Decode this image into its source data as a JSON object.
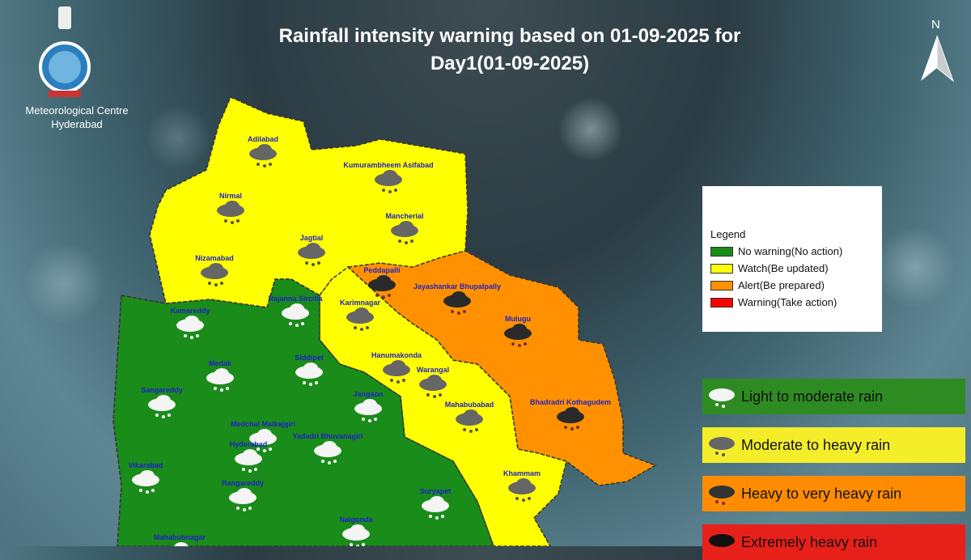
{
  "header": {
    "title_line1": "Rainfall intensity warning based on 01-09-2025 for",
    "title_line2": "Day1(01-09-2025)",
    "org_line1": "Meteorological Centre",
    "org_line2": "Hyderabad",
    "north_label": "N"
  },
  "colors": {
    "no_warning": "#1a8c1a",
    "watch": "#ffff00",
    "alert": "#ff9100",
    "warning": "#ff0000",
    "label": "#1f1fc8"
  },
  "legend": {
    "title": "Legend",
    "items": [
      {
        "label": "No warning(No action)",
        "color": "#1a8c1a"
      },
      {
        "label": "Watch(Be updated)",
        "color": "#ffff00"
      },
      {
        "label": "Alert(Be prepared)",
        "color": "#ff9100"
      },
      {
        "label": "Warning(Take action)",
        "color": "#ff0000"
      }
    ]
  },
  "categories": [
    {
      "label": "Light to moderate rain",
      "color": "#2e8b22",
      "icon": "light-rain-cloud-icon"
    },
    {
      "label": "Moderate to heavy rain",
      "color": "#f4ee2a",
      "icon": "moderate-rain-cloud-icon"
    },
    {
      "label": "Heavy to very heavy rain",
      "color": "#ff8c00",
      "icon": "heavy-rain-cloud-icon"
    },
    {
      "label": "Extremely heavy rain",
      "color": "#e8201a",
      "icon": "extreme-rain-cloud-icon"
    }
  ],
  "districts": [
    {
      "name": "Adilabad",
      "level": "watch",
      "intensity": "moderate"
    },
    {
      "name": "Kumurambheem Asifabad",
      "level": "watch",
      "intensity": "moderate"
    },
    {
      "name": "Nirmal",
      "level": "watch",
      "intensity": "moderate"
    },
    {
      "name": "Mancherial",
      "level": "watch",
      "intensity": "moderate"
    },
    {
      "name": "Jagtial",
      "level": "watch",
      "intensity": "moderate"
    },
    {
      "name": "Nizamabad",
      "level": "watch",
      "intensity": "moderate"
    },
    {
      "name": "Peddapalli",
      "level": "alert",
      "intensity": "heavy"
    },
    {
      "name": "Jayashankar Bhupalpally",
      "level": "alert",
      "intensity": "heavy"
    },
    {
      "name": "Kamareddy",
      "level": "no_warning",
      "intensity": "light"
    },
    {
      "name": "Rajanna Sircilla",
      "level": "no_warning",
      "intensity": "light"
    },
    {
      "name": "Karimnagar",
      "level": "watch",
      "intensity": "moderate"
    },
    {
      "name": "Mulugu",
      "level": "alert",
      "intensity": "heavy"
    },
    {
      "name": "Medak",
      "level": "no_warning",
      "intensity": "light"
    },
    {
      "name": "Siddipet",
      "level": "no_warning",
      "intensity": "light"
    },
    {
      "name": "Hanumakonda",
      "level": "watch",
      "intensity": "moderate"
    },
    {
      "name": "Warangal",
      "level": "watch",
      "intensity": "moderate"
    },
    {
      "name": "Sangareddy",
      "level": "no_warning",
      "intensity": "light"
    },
    {
      "name": "Jangaon",
      "level": "no_warning",
      "intensity": "light"
    },
    {
      "name": "Mahabubabad",
      "level": "watch",
      "intensity": "moderate"
    },
    {
      "name": "Bhadradri Kothagudem",
      "level": "alert",
      "intensity": "heavy"
    },
    {
      "name": "Medchal Malkajgiri",
      "level": "no_warning",
      "intensity": "light"
    },
    {
      "name": "Yadadri Bhuvanagiri",
      "level": "no_warning",
      "intensity": "light"
    },
    {
      "name": "Hyderabad",
      "level": "no_warning",
      "intensity": "light"
    },
    {
      "name": "Vikarabad",
      "level": "no_warning",
      "intensity": "light"
    },
    {
      "name": "Rangareddy",
      "level": "no_warning",
      "intensity": "light"
    },
    {
      "name": "Suryapet",
      "level": "no_warning",
      "intensity": "light"
    },
    {
      "name": "Khammam",
      "level": "watch",
      "intensity": "moderate"
    },
    {
      "name": "Nalgonda",
      "level": "no_warning",
      "intensity": "light"
    },
    {
      "name": "Mahabubnagar",
      "level": "no_warning",
      "intensity": "light"
    }
  ]
}
